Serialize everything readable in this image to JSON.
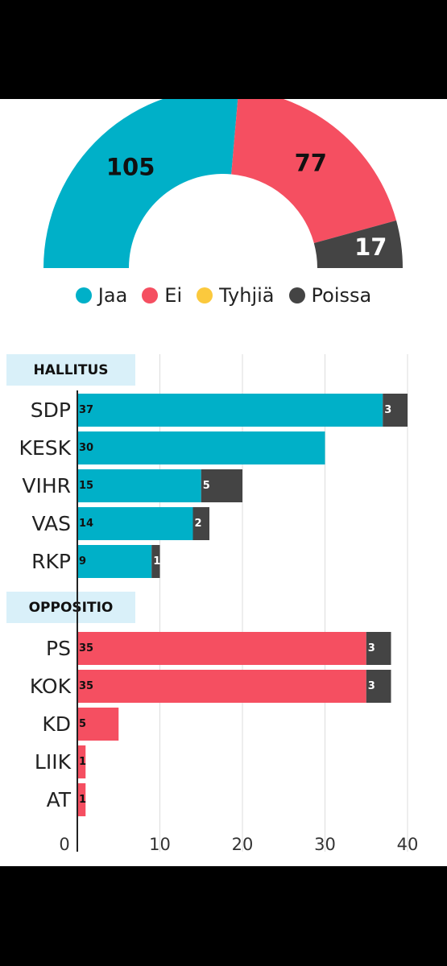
{
  "chart_data": [
    {
      "type": "pie",
      "variant": "semicircle",
      "slices": [
        {
          "name": "Jaa",
          "value": 105,
          "color": "#00b0c8"
        },
        {
          "name": "Ei",
          "value": 77,
          "color": "#f54f61"
        },
        {
          "name": "Tyhjiä",
          "value": 0,
          "color": "#fbc93d"
        },
        {
          "name": "Poissa",
          "value": 17,
          "color": "#444444"
        }
      ],
      "legend_position": "bottom"
    },
    {
      "type": "bar",
      "orientation": "horizontal",
      "stacked": true,
      "xlim": [
        0,
        40
      ],
      "x_ticks": [
        0,
        10,
        20,
        30,
        40
      ],
      "grid": true,
      "groups": [
        {
          "label": "HALLITUS",
          "parties": [
            {
              "name": "SDP",
              "jaa": 37,
              "poissa": 3
            },
            {
              "name": "KESK",
              "jaa": 30,
              "poissa": 0
            },
            {
              "name": "VIHR",
              "jaa": 15,
              "poissa": 5
            },
            {
              "name": "VAS",
              "jaa": 14,
              "poissa": 2
            },
            {
              "name": "RKP",
              "jaa": 9,
              "poissa": 1
            }
          ]
        },
        {
          "label": "OPPOSITIO",
          "parties": [
            {
              "name": "PS",
              "ei": 35,
              "poissa": 3
            },
            {
              "name": "KOK",
              "ei": 35,
              "poissa": 3
            },
            {
              "name": "KD",
              "ei": 5,
              "poissa": 0
            },
            {
              "name": "LIIK",
              "ei": 1,
              "poissa": 0
            },
            {
              "name": "AT",
              "ei": 1,
              "poissa": 0
            }
          ]
        }
      ]
    }
  ]
}
